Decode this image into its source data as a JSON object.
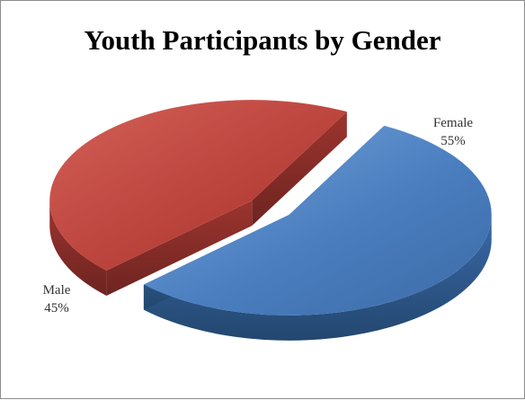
{
  "chart_data": {
    "type": "pie",
    "title": "Youth Participants by Gender",
    "series": [
      {
        "name": "",
        "slices": [
          {
            "label": "Female",
            "value": 55,
            "value_label": "55%",
            "color": "#4a7ebf",
            "exploded": true
          },
          {
            "label": "Male",
            "value": 45,
            "value_label": "45%",
            "color": "#b9423b",
            "exploded": true
          }
        ]
      }
    ],
    "style": "3d-exploded",
    "legend": "none"
  }
}
